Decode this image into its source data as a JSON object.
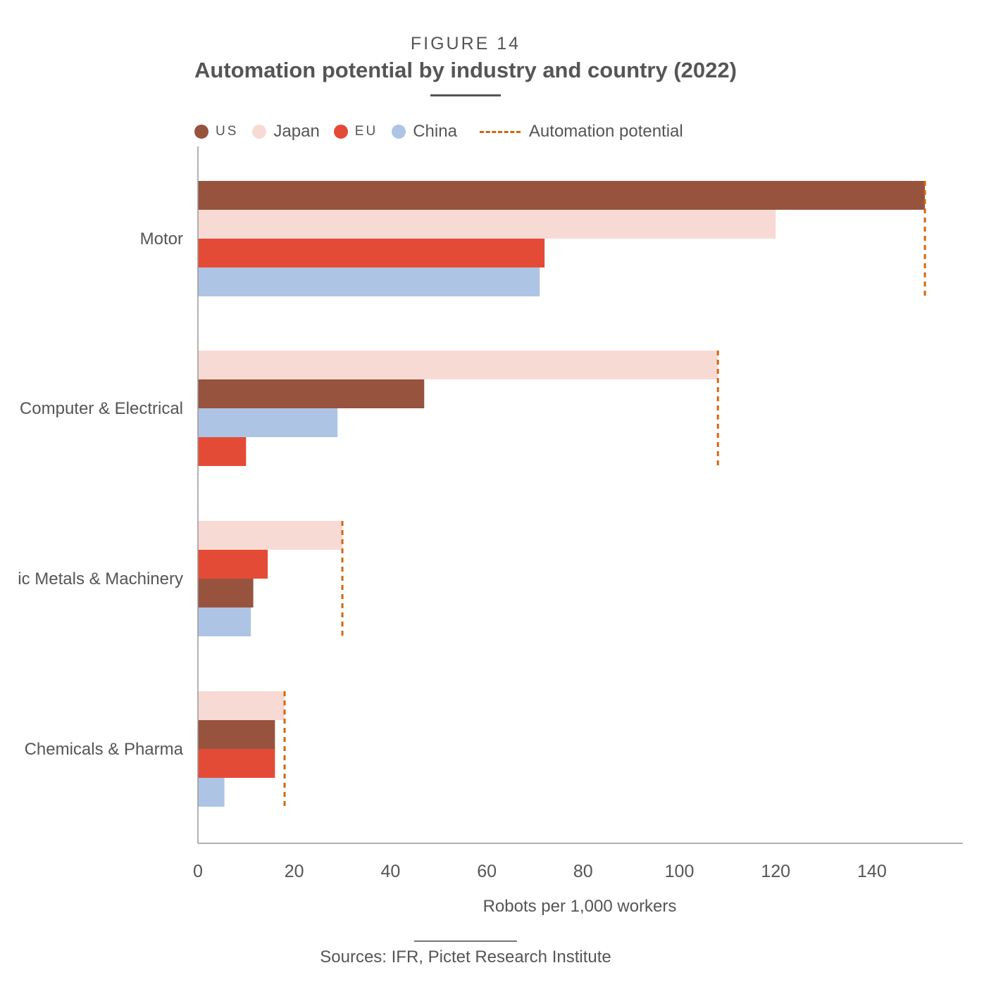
{
  "figure_label": "FIGURE 14",
  "source": "Sources: IFR, Pictet Research Institute",
  "chart_data": {
    "type": "bar",
    "orientation": "horizontal",
    "title": "Automation potential by industry and country (2022)",
    "xlabel": "Robots per 1,000 workers",
    "ylabel": "",
    "xlim": [
      0,
      158
    ],
    "x_ticks": [
      0,
      20,
      40,
      60,
      80,
      100,
      120,
      140
    ],
    "grid": false,
    "legend_position": "top",
    "legend": [
      {
        "name": "US",
        "color": "#97533d",
        "type": "dot"
      },
      {
        "name": "Japan",
        "color": "#f8dad4",
        "type": "dot"
      },
      {
        "name": "EU",
        "color": "#e44b37",
        "type": "dot"
      },
      {
        "name": "China",
        "color": "#aec4e4",
        "type": "dot"
      },
      {
        "name": "Automation potential",
        "color": "#d4660e",
        "type": "dashed-line"
      }
    ],
    "categories": [
      {
        "name": "Motor",
        "label": "Motor",
        "bars": [
          {
            "series": "US",
            "value": 151
          },
          {
            "series": "Japan",
            "value": 120
          },
          {
            "series": "EU",
            "value": 72
          },
          {
            "series": "China",
            "value": 71
          }
        ],
        "automation_potential": 151
      },
      {
        "name": "Computer & Electrical",
        "label": "Computer & Electrical",
        "bars": [
          {
            "series": "Japan",
            "value": 108
          },
          {
            "series": "US",
            "value": 47
          },
          {
            "series": "China",
            "value": 29
          },
          {
            "series": "EU",
            "value": 10
          }
        ],
        "automation_potential": 108
      },
      {
        "name": "Basic Metals & Machinery",
        "label": "ic Metals & Machinery",
        "bars": [
          {
            "series": "Japan",
            "value": 30
          },
          {
            "series": "EU",
            "value": 14.5
          },
          {
            "series": "US",
            "value": 11.5
          },
          {
            "series": "China",
            "value": 11
          }
        ],
        "automation_potential": 30
      },
      {
        "name": "Chemicals & Pharma",
        "label": "Chemicals & Pharma",
        "bars": [
          {
            "series": "Japan",
            "value": 18
          },
          {
            "series": "US",
            "value": 16
          },
          {
            "series": "EU",
            "value": 16
          },
          {
            "series": "China",
            "value": 5.5
          }
        ],
        "automation_potential": 18
      }
    ]
  }
}
